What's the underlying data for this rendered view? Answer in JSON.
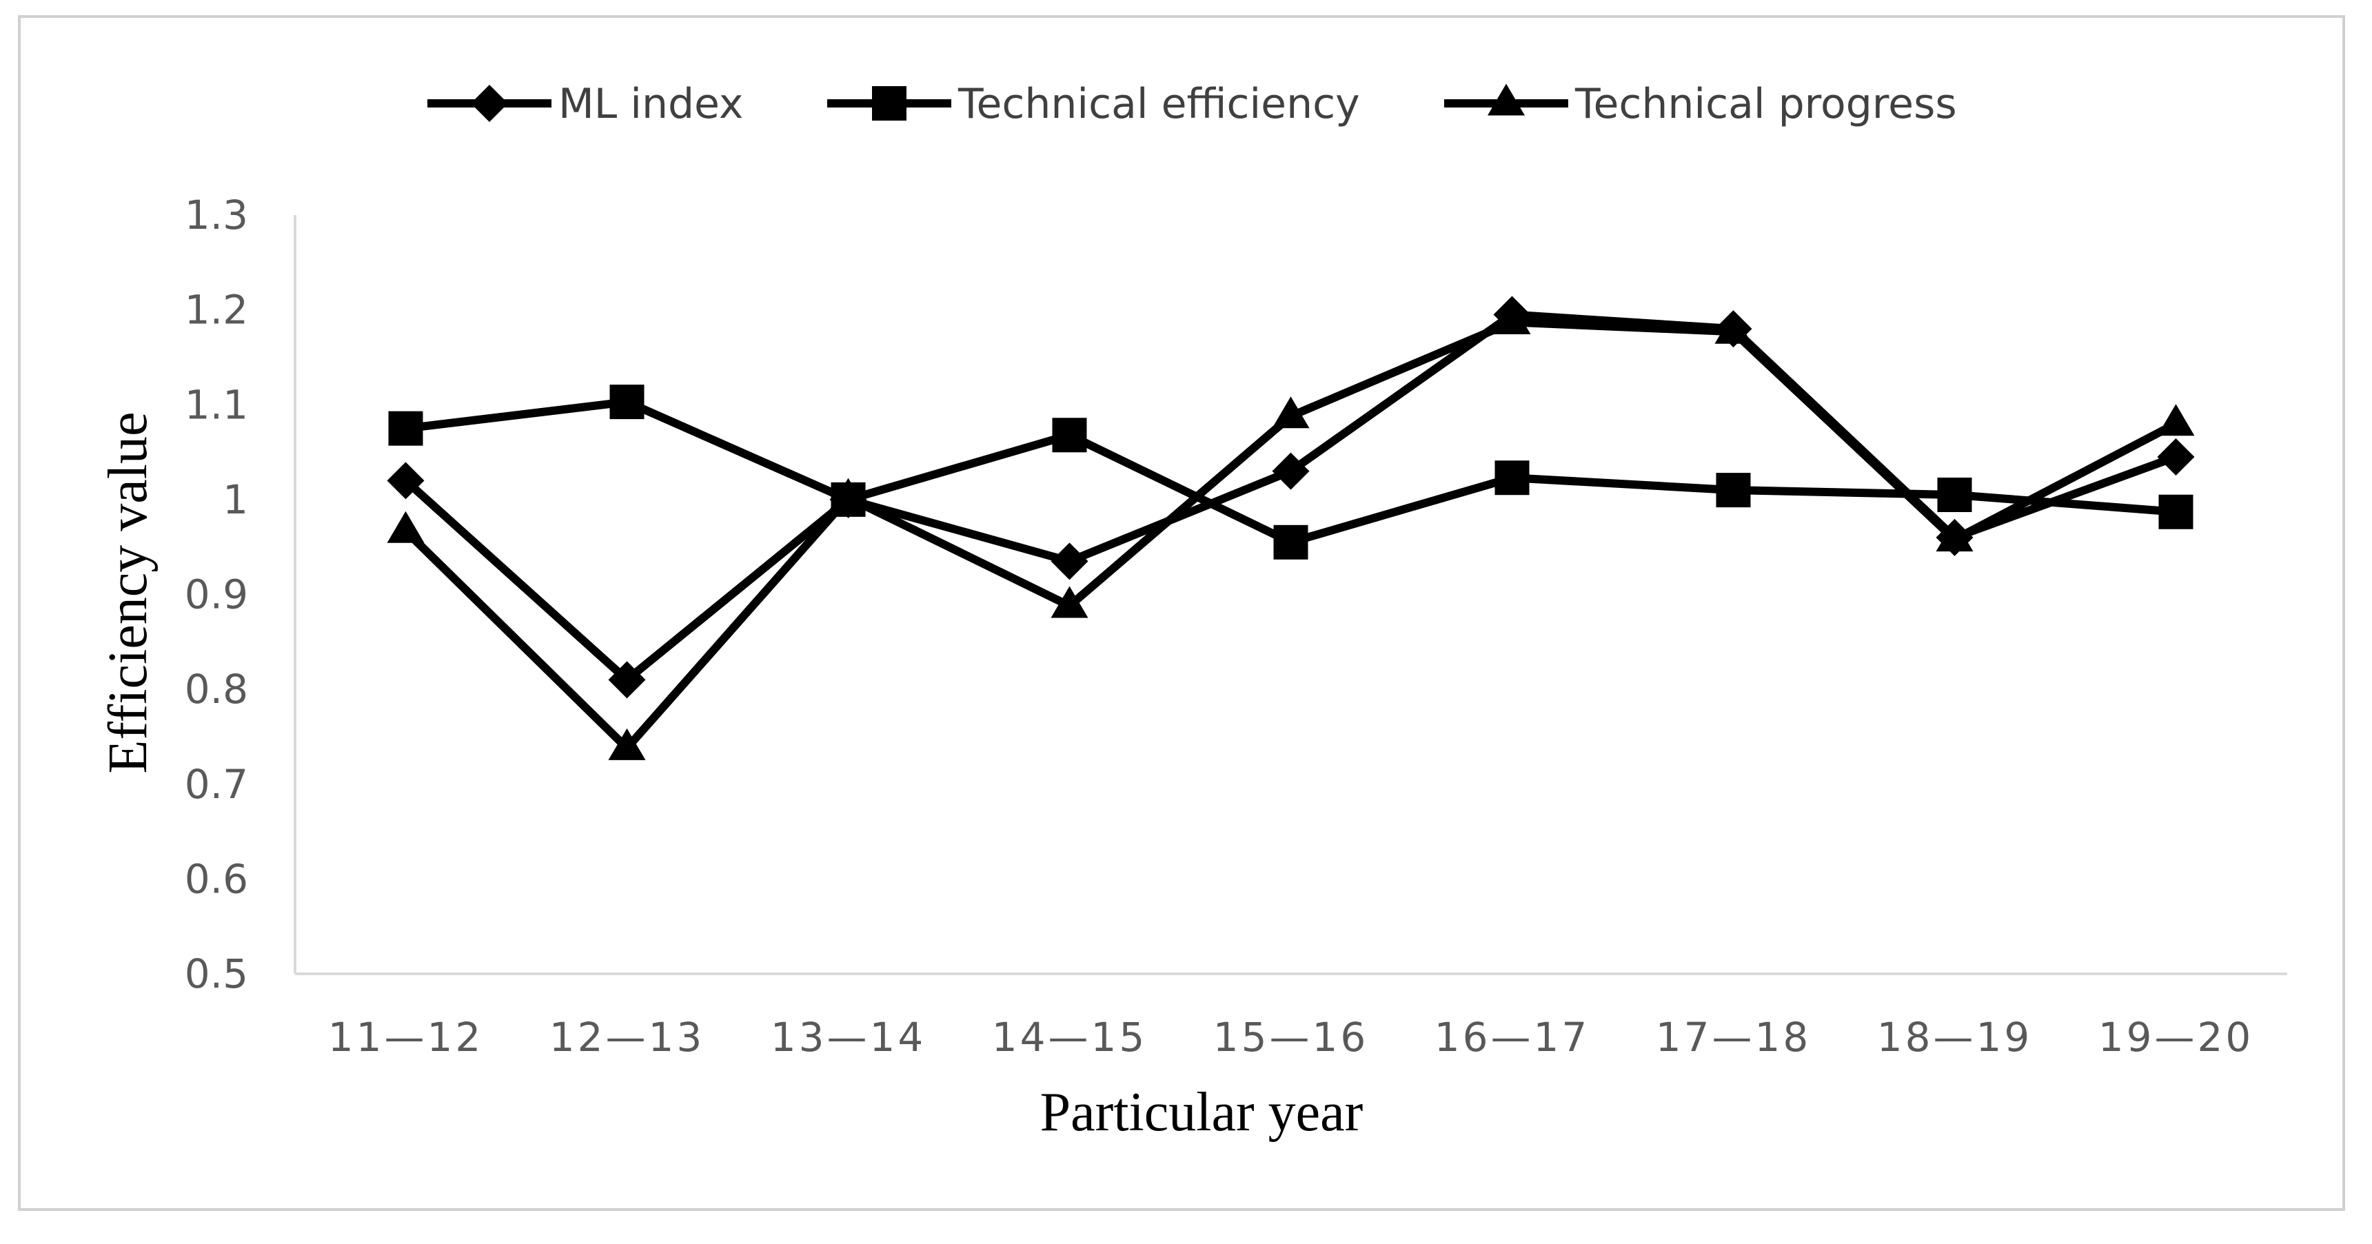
{
  "chart_data": {
    "type": "line",
    "title": "",
    "xlabel": "Particular year",
    "ylabel": "Efficiency value",
    "categories": [
      "11—12",
      "12—13",
      "13—14",
      "14—15",
      "15—16",
      "16—17",
      "17—18",
      "18—19",
      "19—20"
    ],
    "ylim": [
      0.5,
      1.3
    ],
    "yticks": [
      "0.5",
      "0.6",
      "0.7",
      "0.8",
      "0.9",
      "1",
      "1.1",
      "1.2",
      "1.3"
    ],
    "legend_position": "top",
    "grid": false,
    "series": [
      {
        "name": "ML index",
        "marker": "diamond",
        "values": [
          1.02,
          0.81,
          1.0,
          0.935,
          1.03,
          1.195,
          1.18,
          0.96,
          1.045
        ]
      },
      {
        "name": "Technical efficiency",
        "marker": "square",
        "values": [
          1.075,
          1.103,
          1.0,
          1.068,
          0.955,
          1.023,
          1.01,
          1.005,
          0.987
        ]
      },
      {
        "name": "Technical progress",
        "marker": "triangle",
        "values": [
          0.967,
          0.738,
          1.002,
          0.888,
          1.088,
          1.187,
          1.177,
          0.958,
          1.08
        ]
      }
    ],
    "colors": {
      "line": "#000000",
      "axis": "#d9d9d9",
      "tick_text": "#595959",
      "legend_text": "#404040"
    }
  }
}
